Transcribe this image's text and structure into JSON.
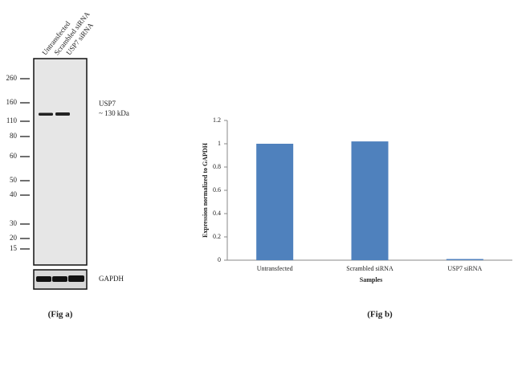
{
  "blot": {
    "lanes": [
      "Untransfected",
      "Scrambled siRNA",
      "USP7 siRNA"
    ],
    "markers": [
      260,
      160,
      110,
      80,
      60,
      50,
      40,
      30,
      20,
      15
    ],
    "target": "USP7",
    "target_size": "~ 130 kDa",
    "loading_control": "GAPDH",
    "caption": "(Fig a)"
  },
  "chart_data": {
    "type": "bar",
    "caption": "(Fig b)",
    "xlabel": "Samples",
    "ylabel": "Expression  normalized to GAPDH",
    "categories": [
      "Untransfected",
      "Scrambled siRNA",
      "USP7  siRNA"
    ],
    "values": [
      1,
      1.02,
      0.01
    ],
    "color": "#4f81bd",
    "ylim": [
      0,
      1.2
    ],
    "yticks": [
      0,
      0.2,
      0.4,
      0.6,
      0.8,
      1,
      1.2
    ]
  }
}
